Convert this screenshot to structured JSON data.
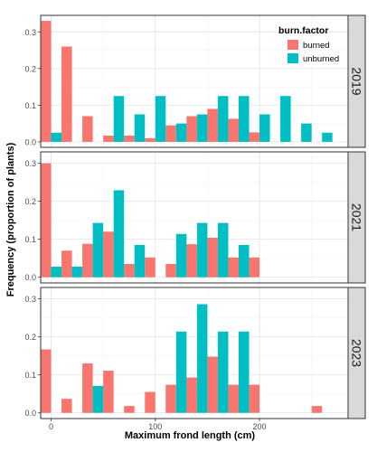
{
  "chart_data": {
    "type": "bar",
    "layout": "faceted-grouped-histogram",
    "xlabel": "Maximum frond length (cm)",
    "ylabel": "Frequency (proportion of plants)",
    "xlim": [
      -10,
      285
    ],
    "x_ticks": [
      0,
      100,
      200
    ],
    "bin_width": 20,
    "grid": true,
    "legend": {
      "title": "burn.factor",
      "position": "top-right (inside first panel)",
      "entries": [
        "burned",
        "unburned"
      ]
    },
    "colors": {
      "burned": "#F8766D",
      "unburned": "#00BFC4"
    },
    "facets": [
      {
        "label": "2019",
        "ylim": [
          -0.015,
          0.345
        ],
        "y_ticks": [
          0.0,
          0.1,
          0.2,
          0.3
        ],
        "series": [
          {
            "name": "burned",
            "points": [
              [
                0,
                0.33
              ],
              [
                20,
                0.26
              ],
              [
                40,
                0.07
              ],
              [
                60,
                0.017
              ],
              [
                80,
                0.017
              ],
              [
                100,
                0.01
              ],
              [
                120,
                0.045
              ],
              [
                140,
                0.07
              ],
              [
                160,
                0.09
              ],
              [
                180,
                0.063
              ],
              [
                200,
                0.026
              ]
            ]
          },
          {
            "name": "unburned",
            "points": [
              [
                0,
                0.025
              ],
              [
                60,
                0.125
              ],
              [
                80,
                0.075
              ],
              [
                100,
                0.125
              ],
              [
                120,
                0.05
              ],
              [
                140,
                0.075
              ],
              [
                160,
                0.125
              ],
              [
                180,
                0.125
              ],
              [
                200,
                0.075
              ],
              [
                220,
                0.125
              ],
              [
                240,
                0.05
              ],
              [
                260,
                0.025
              ]
            ]
          }
        ]
      },
      {
        "label": "2021",
        "ylim": [
          -0.015,
          0.33
        ],
        "y_ticks": [
          0.0,
          0.1,
          0.2,
          0.3
        ],
        "series": [
          {
            "name": "burned",
            "points": [
              [
                0,
                0.3
              ],
              [
                20,
                0.07
              ],
              [
                40,
                0.088
              ],
              [
                60,
                0.12
              ],
              [
                80,
                0.035
              ],
              [
                100,
                0.052
              ],
              [
                120,
                0.035
              ],
              [
                140,
                0.087
              ],
              [
                160,
                0.104
              ],
              [
                180,
                0.052
              ],
              [
                200,
                0.052
              ]
            ]
          },
          {
            "name": "unburned",
            "points": [
              [
                0,
                0.028
              ],
              [
                20,
                0.028
              ],
              [
                40,
                0.143
              ],
              [
                60,
                0.229
              ],
              [
                80,
                0.085
              ],
              [
                120,
                0.114
              ],
              [
                140,
                0.143
              ],
              [
                160,
                0.143
              ],
              [
                180,
                0.085
              ]
            ]
          }
        ]
      },
      {
        "label": "2023",
        "ylim": [
          -0.015,
          0.33
        ],
        "y_ticks": [
          0.0,
          0.1,
          0.2,
          0.3
        ],
        "series": [
          {
            "name": "burned",
            "points": [
              [
                0,
                0.167
              ],
              [
                20,
                0.037
              ],
              [
                40,
                0.13
              ],
              [
                60,
                0.111
              ],
              [
                80,
                0.018
              ],
              [
                100,
                0.055
              ],
              [
                120,
                0.074
              ],
              [
                140,
                0.093
              ],
              [
                160,
                0.148
              ],
              [
                180,
                0.074
              ],
              [
                200,
                0.074
              ],
              [
                260,
                0.018
              ]
            ]
          },
          {
            "name": "unburned",
            "points": [
              [
                40,
                0.071
              ],
              [
                120,
                0.214
              ],
              [
                140,
                0.286
              ],
              [
                160,
                0.214
              ],
              [
                180,
                0.214
              ]
            ]
          }
        ]
      }
    ]
  }
}
